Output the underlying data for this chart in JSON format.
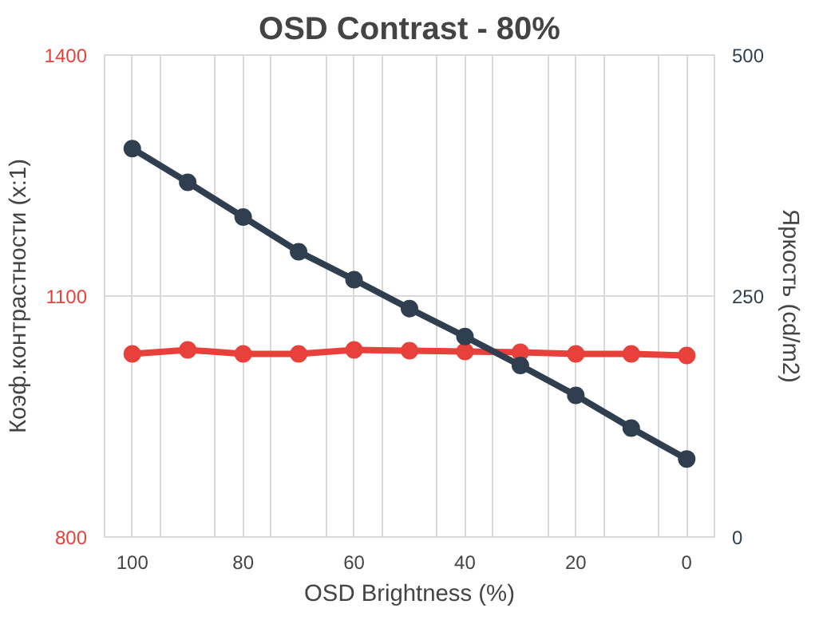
{
  "chart_data": {
    "type": "line",
    "title": "OSD Contrast - 80%",
    "xlabel": "OSD Brightness (%)",
    "ylabel": "Коэф.контрастности (x:1)",
    "y2label": "Яркость (cd/m2)",
    "x": [
      100,
      90,
      80,
      70,
      60,
      50,
      40,
      30,
      20,
      10,
      0
    ],
    "series": [
      {
        "color": "#e8403a",
        "values": [
          1028,
          1033,
          1028,
          1028,
          1033,
          1032,
          1031,
          1030,
          1028,
          1028,
          1026
        ]
      },
      {
        "color": "#2f3f4f",
        "axis": "y2",
        "values": [
          403,
          368,
          332,
          296,
          267,
          237,
          208,
          178,
          147,
          113,
          81
        ]
      }
    ],
    "xlim": [
      105,
      -5
    ],
    "xticks": [
      100,
      {
        "value": 95,
        "label": null
      },
      80,
      {
        "value": 85,
        "label": null
      },
      60,
      {
        "value": 75,
        "label": null
      },
      40,
      {
        "value": 65,
        "label": null
      },
      20,
      {
        "value": 55,
        "label": null
      },
      0,
      {
        "value": 45,
        "label": null
      },
      {
        "value": 35,
        "label": null
      },
      {
        "value": 25,
        "label": null
      },
      {
        "value": 15,
        "label": null
      },
      {
        "value": 5,
        "label": null
      }
    ],
    "ylim": [
      800,
      1400
    ],
    "yticks": [
      800,
      1100,
      1400
    ],
    "y2lim": [
      0,
      500
    ],
    "y2ticks": [
      0,
      250,
      500
    ],
    "grid": true,
    "marker": "circle",
    "line_style": "solid"
  }
}
